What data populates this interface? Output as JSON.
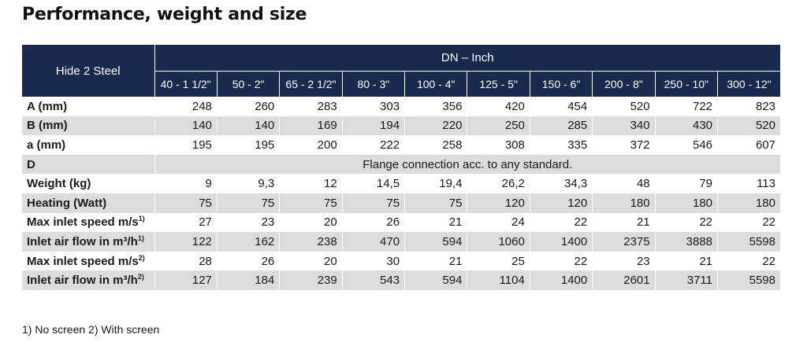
{
  "title": "Performance, weight and size",
  "colors": {
    "header_bg": "#1a2a4f",
    "shaded_row": "#dcdcdc",
    "header_text": "#ffffff"
  },
  "table": {
    "group_label": "Hide 2 Steel",
    "dn_label": "DN – Inch",
    "sizes": [
      "40 - 1 1/2\"",
      "50 - 2\"",
      "65 - 2 1/2\"",
      "80 - 3\"",
      "100 - 4\"",
      "125 - 5\"",
      "150 - 6\"",
      "200 - 8\"",
      "250 - 10\"",
      "300 - 12\""
    ],
    "rows": [
      {
        "label": "A (mm)",
        "shaded": false,
        "values": [
          "248",
          "260",
          "283",
          "303",
          "356",
          "420",
          "454",
          "520",
          "722",
          "823"
        ]
      },
      {
        "label": "B (mm)",
        "shaded": true,
        "values": [
          "140",
          "140",
          "169",
          "194",
          "220",
          "250",
          "285",
          "340",
          "430",
          "520"
        ]
      },
      {
        "label": "a (mm)",
        "shaded": false,
        "values": [
          "195",
          "195",
          "200",
          "222",
          "258",
          "308",
          "335",
          "372",
          "546",
          "607"
        ]
      },
      {
        "label": "D",
        "shaded": true,
        "span_text": "Flange connection acc. to any standard."
      },
      {
        "label": "Weight (kg)",
        "shaded": false,
        "values": [
          "9",
          "9,3",
          "12",
          "14,5",
          "19,4",
          "26,2",
          "34,3",
          "48",
          "79",
          "113"
        ]
      },
      {
        "label": "Heating (Watt)",
        "shaded": true,
        "values": [
          "75",
          "75",
          "75",
          "75",
          "75",
          "120",
          "120",
          "180",
          "180",
          "180"
        ]
      },
      {
        "label": "Max inlet speed m/s",
        "sup": "1)",
        "shaded": false,
        "values": [
          "27",
          "23",
          "20",
          "26",
          "21",
          "24",
          "22",
          "21",
          "22",
          "22"
        ]
      },
      {
        "label": "Inlet air flow in m³/h",
        "sup": "1)",
        "shaded": true,
        "values": [
          "122",
          "162",
          "238",
          "470",
          "594",
          "1060",
          "1400",
          "2375",
          "3888",
          "5598"
        ]
      },
      {
        "label": "Max inlet speed m/s",
        "sup": "2)",
        "shaded": false,
        "values": [
          "28",
          "26",
          "20",
          "30",
          "21",
          "25",
          "22",
          "23",
          "21",
          "22"
        ]
      },
      {
        "label": "Inlet air flow in m³/h",
        "sup": "2)",
        "shaded": true,
        "values": [
          "127",
          "184",
          "239",
          "543",
          "594",
          "1104",
          "1400",
          "2601",
          "3711",
          "5598"
        ]
      }
    ]
  },
  "footnote": "1) No screen 2) With screen"
}
